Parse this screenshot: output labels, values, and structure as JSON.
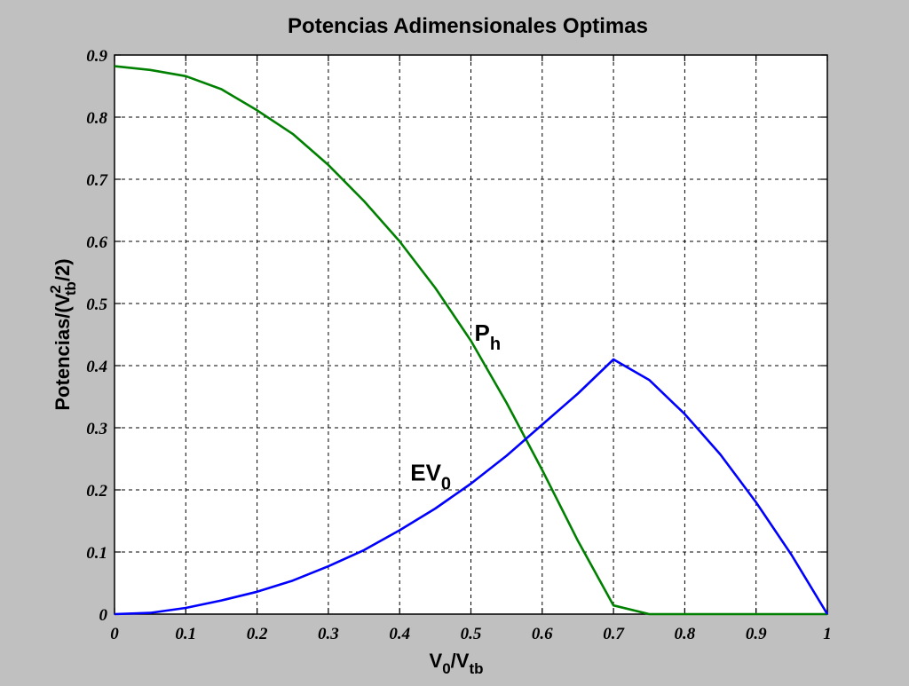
{
  "chart_data": {
    "type": "line",
    "title": "Potencias Adimensionales Optimas",
    "xlabel": {
      "base": "V",
      "sub1": "0",
      "mid": "/V",
      "sub2": "tb"
    },
    "ylabel": {
      "pre": "Potencias/(V",
      "sup": "2",
      "sub": "tb",
      "post": "/2)"
    },
    "xlim": [
      0,
      1
    ],
    "ylim": [
      0,
      0.9
    ],
    "grid": true,
    "xticks": [
      "0",
      "0.1",
      "0.2",
      "0.3",
      "0.4",
      "0.5",
      "0.6",
      "0.7",
      "0.8",
      "0.9",
      "1"
    ],
    "yticks": [
      "0",
      "0.1",
      "0.2",
      "0.3",
      "0.4",
      "0.5",
      "0.6",
      "0.7",
      "0.8",
      "0.9"
    ],
    "series": [
      {
        "name": "P_h",
        "color": "#008000",
        "x": [
          0,
          0.05,
          0.1,
          0.15,
          0.2,
          0.25,
          0.3,
          0.35,
          0.4,
          0.45,
          0.5,
          0.55,
          0.6,
          0.65,
          0.7,
          0.75,
          0.8,
          0.85,
          0.9,
          0.95,
          1.0
        ],
        "y": [
          0.882,
          0.876,
          0.866,
          0.845,
          0.811,
          0.773,
          0.723,
          0.665,
          0.6,
          0.525,
          0.44,
          0.34,
          0.232,
          0.118,
          0.014,
          0.0,
          0.0,
          0.0,
          0.0,
          0.0,
          0.0
        ]
      },
      {
        "name": "EV_0",
        "color": "#0000ff",
        "x": [
          0,
          0.05,
          0.1,
          0.15,
          0.2,
          0.25,
          0.3,
          0.35,
          0.4,
          0.45,
          0.5,
          0.55,
          0.6,
          0.65,
          0.7,
          0.75,
          0.8,
          0.85,
          0.9,
          0.95,
          1.0
        ],
        "y": [
          0.0,
          0.002,
          0.01,
          0.022,
          0.036,
          0.054,
          0.077,
          0.103,
          0.135,
          0.17,
          0.21,
          0.255,
          0.305,
          0.355,
          0.41,
          0.377,
          0.322,
          0.257,
          0.18,
          0.095,
          0.0
        ]
      }
    ],
    "annotations": [
      {
        "text": "P",
        "sub": "h",
        "x": 0.505,
        "y": 0.44
      },
      {
        "text": "EV",
        "sub": "0",
        "x": 0.415,
        "y": 0.215
      }
    ]
  }
}
